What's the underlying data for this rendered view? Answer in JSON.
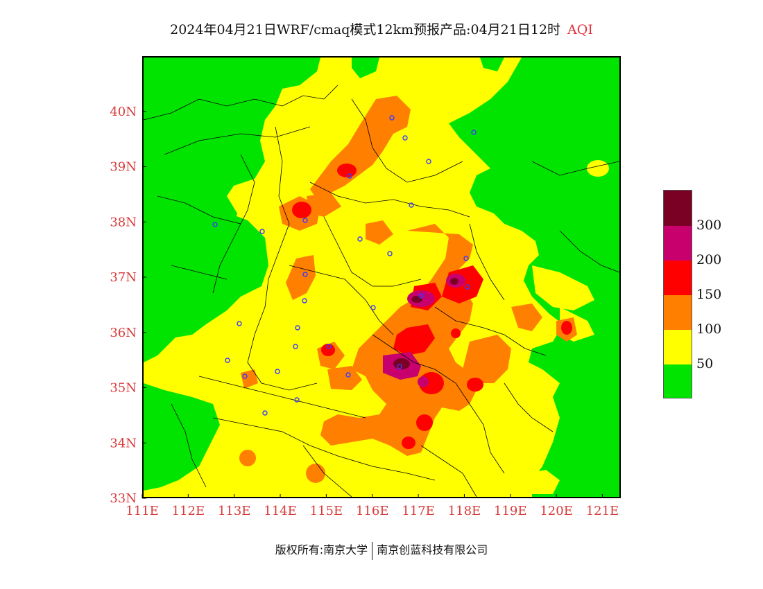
{
  "title": {
    "main": "2024年04月21日WRF/cmaq模式12km预报产品:04月21日12时",
    "variable": "AQI"
  },
  "axes": {
    "x_ticks": [
      "111E",
      "112E",
      "113E",
      "114E",
      "115E",
      "116E",
      "117E",
      "118E",
      "119E",
      "120E",
      "121E"
    ],
    "y_ticks": [
      "40N",
      "39N",
      "38N",
      "37N",
      "36N",
      "35N",
      "34N",
      "33N"
    ],
    "xlim": [
      111,
      121.4
    ],
    "ylim": [
      33,
      41
    ]
  },
  "legend": {
    "labels": [
      "300",
      "200",
      "150",
      "100",
      "50"
    ],
    "colors": [
      "#7a0024",
      "#c8006e",
      "#ff0000",
      "#ff7f00",
      "#ffff00",
      "#00e400"
    ]
  },
  "footer": {
    "copyright": "版权所有:南京大学",
    "company": "南京创蓝科技有限公司"
  },
  "colors": {
    "good": "#00e400",
    "moderate": "#ffff00",
    "usg": "#ff7f00",
    "unhealthy": "#ff0000",
    "very_unhealthy": "#c8006e",
    "hazardous": "#7a0024",
    "tick_label": "#d93a3a",
    "city_marker": "#3b3bff"
  }
}
